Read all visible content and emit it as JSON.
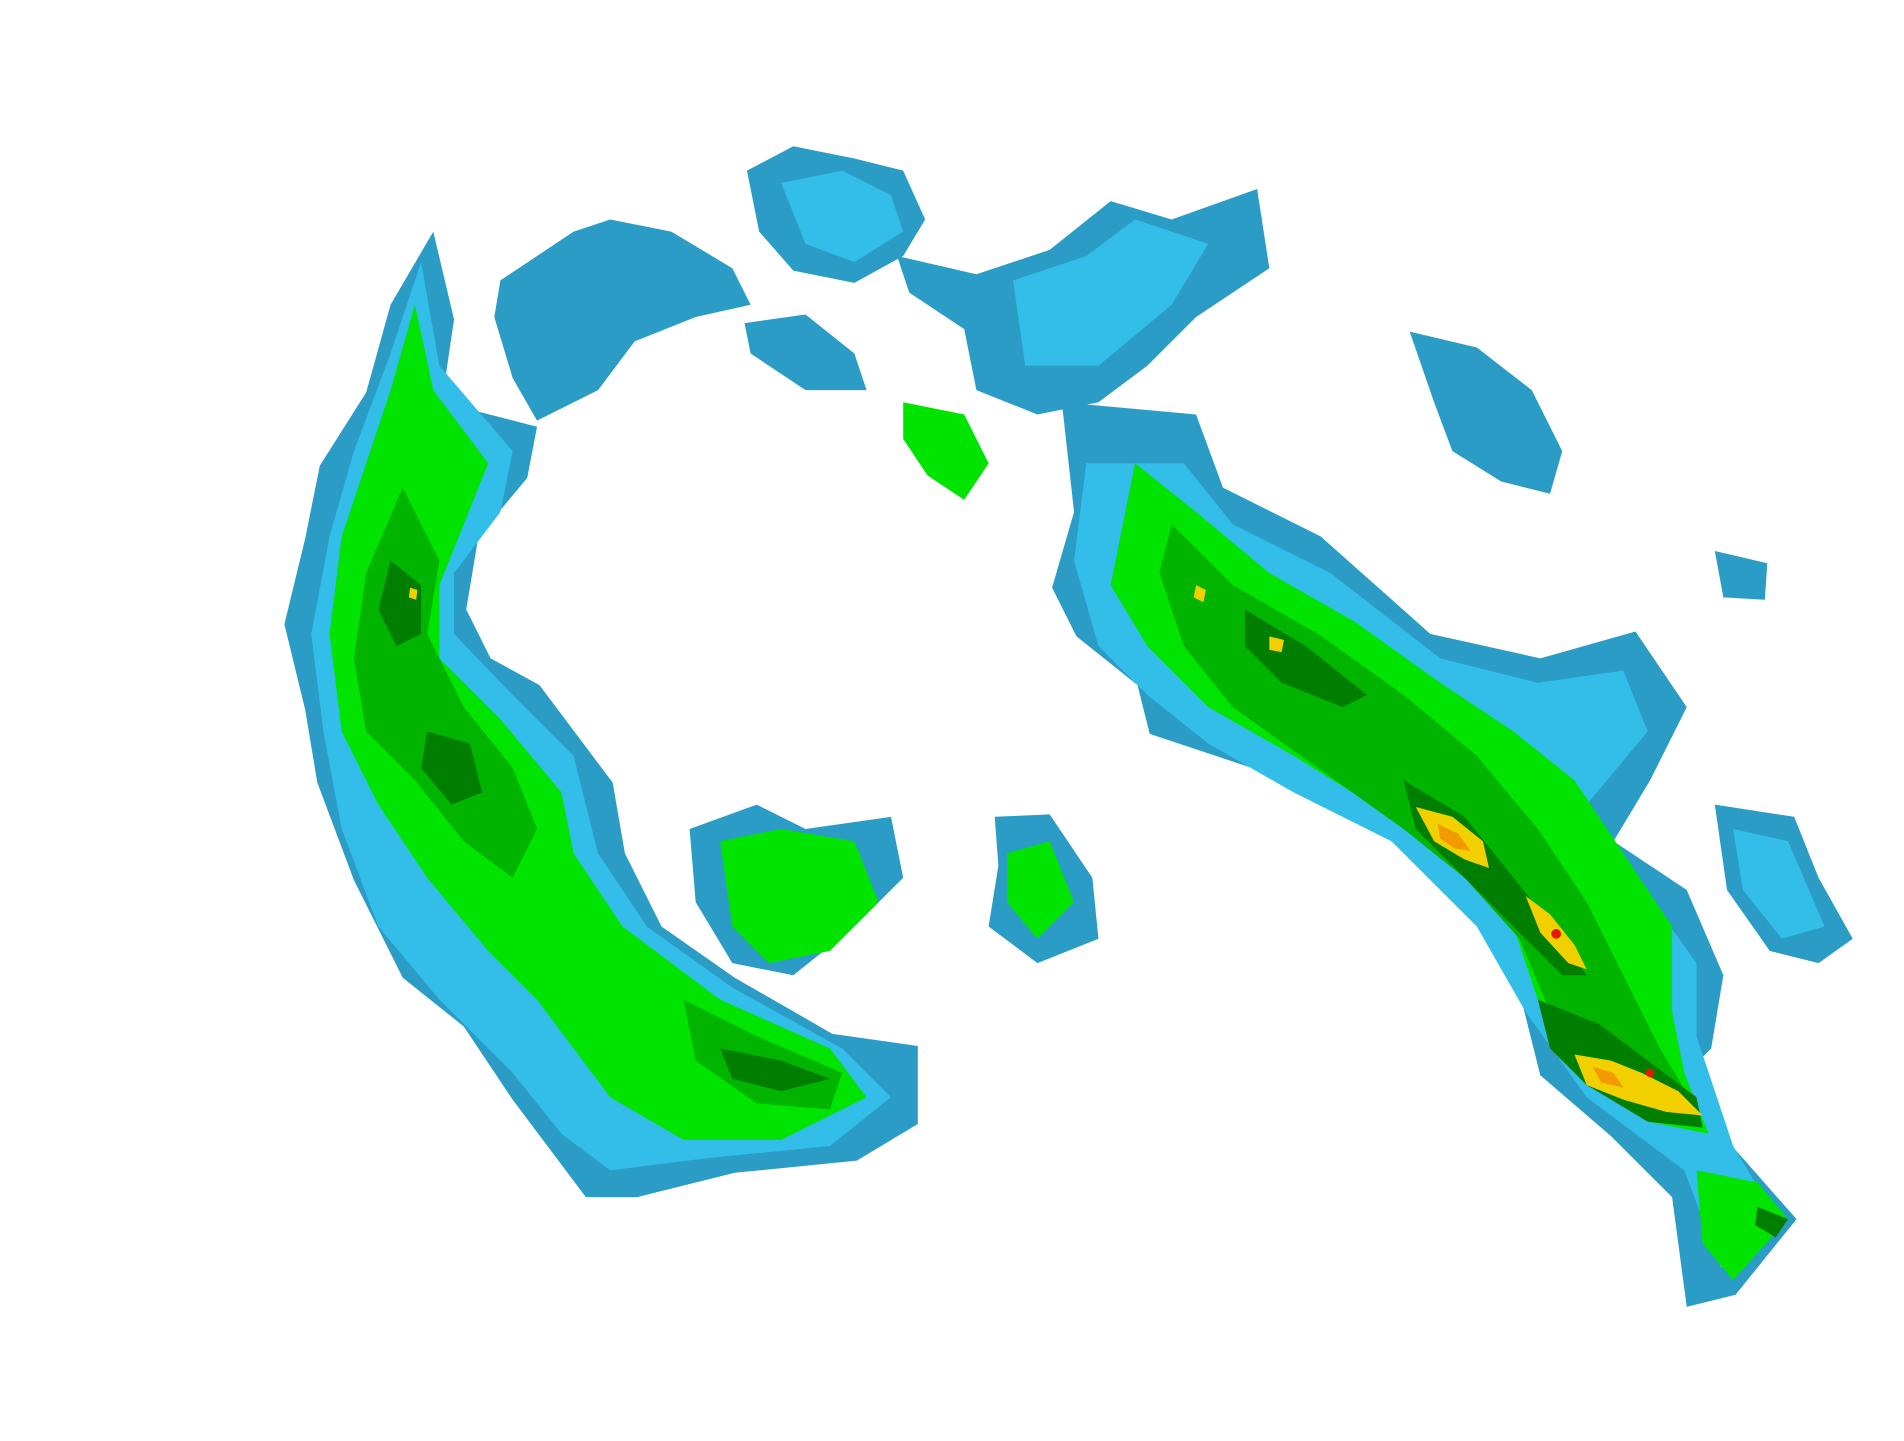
{
  "map": {
    "type": "radar-reflectivity",
    "background": "#ffffff",
    "palette": {
      "light_blue": "#33bde9",
      "mid_blue": "#2a9cc6",
      "light_green": "#00e400",
      "green": "#00b400",
      "dark_green": "#007e00",
      "yellow": "#f2d000",
      "orange": "#f29a00",
      "red": "#e21a00"
    }
  }
}
